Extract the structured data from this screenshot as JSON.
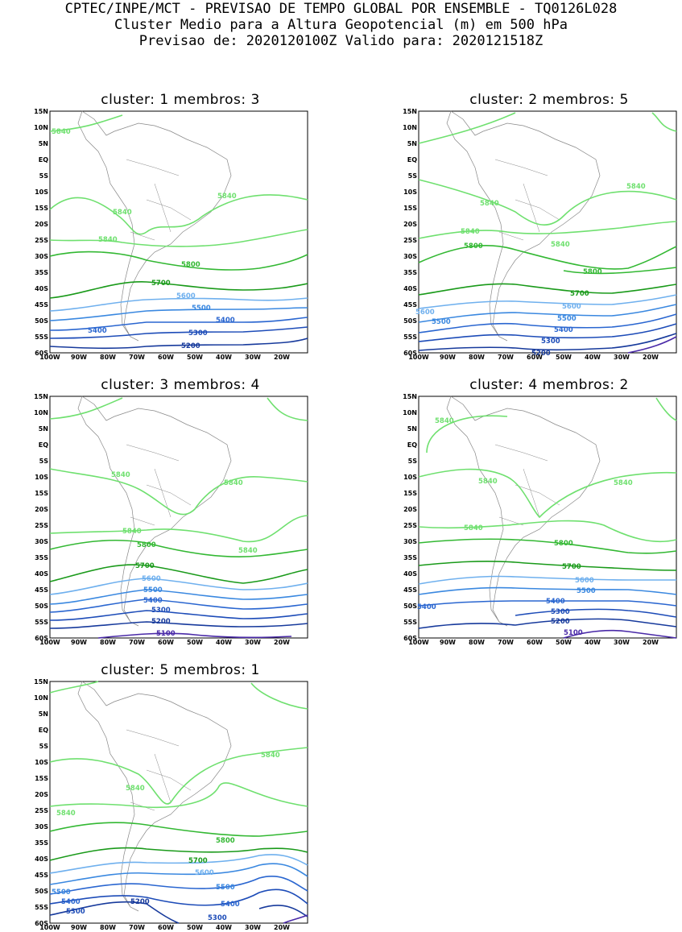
{
  "header": {
    "line1": "CPTEC/INPE/MCT - PREVISAO DE TEMPO GLOBAL POR ENSEMBLE - TQ0126L028",
    "line2": "Cluster Medio para a Altura Geopotencial (m) em 500 hPa",
    "line3": "Previsao de: 2020120100Z    Valido para: 2020121518Z"
  },
  "axes": {
    "lat_labels": [
      "15N",
      "10N",
      "5N",
      "EQ",
      "5S",
      "10S",
      "15S",
      "20S",
      "25S",
      "30S",
      "35S",
      "40S",
      "45S",
      "50S",
      "55S",
      "60S"
    ],
    "lon_labels": [
      "100W",
      "90W",
      "80W",
      "70W",
      "60W",
      "50W",
      "40W",
      "30W",
      "20W"
    ]
  },
  "colors": {
    "c5840": "#6fe06f",
    "c5800": "#33b833",
    "c5700": "#1a9a1a",
    "c5600": "#6fb0ee",
    "c5500": "#3a88e0",
    "c5400": "#2a66d0",
    "c5300": "#1d4cb8",
    "c5200": "#173a9c",
    "c5100": "#4a2aa8"
  },
  "panels": [
    {
      "title": "cluster: 1   membros: 3",
      "labels": [
        "5840",
        "5840",
        "5840",
        "5840",
        "5800",
        "5700",
        "5600",
        "5500",
        "5400",
        "5400",
        "5300",
        "5200"
      ]
    },
    {
      "title": "cluster: 2   membros: 5",
      "labels": [
        "5840",
        "5840",
        "5840",
        "5840",
        "5800",
        "5800",
        "5700",
        "5600",
        "5600",
        "5500",
        "5500",
        "5400",
        "5300",
        "5200"
      ]
    },
    {
      "title": "cluster: 3   membros: 4",
      "labels": [
        "5840",
        "5840",
        "5840",
        "5840",
        "5800",
        "5700",
        "5600",
        "5500",
        "5400",
        "5300",
        "5200",
        "5100"
      ]
    },
    {
      "title": "cluster: 4   membros: 2",
      "labels": [
        "5840",
        "5840",
        "5840",
        "5840",
        "5800",
        "5700",
        "5600",
        "5500",
        "5400",
        "5400",
        "5300",
        "5200",
        "5100"
      ]
    },
    {
      "title": "cluster: 5   membros: 1",
      "labels": [
        "5840",
        "5840",
        "5840",
        "5800",
        "5700",
        "5600",
        "5500",
        "5500",
        "5400",
        "5400",
        "5300",
        "5300",
        "5200"
      ]
    }
  ]
}
